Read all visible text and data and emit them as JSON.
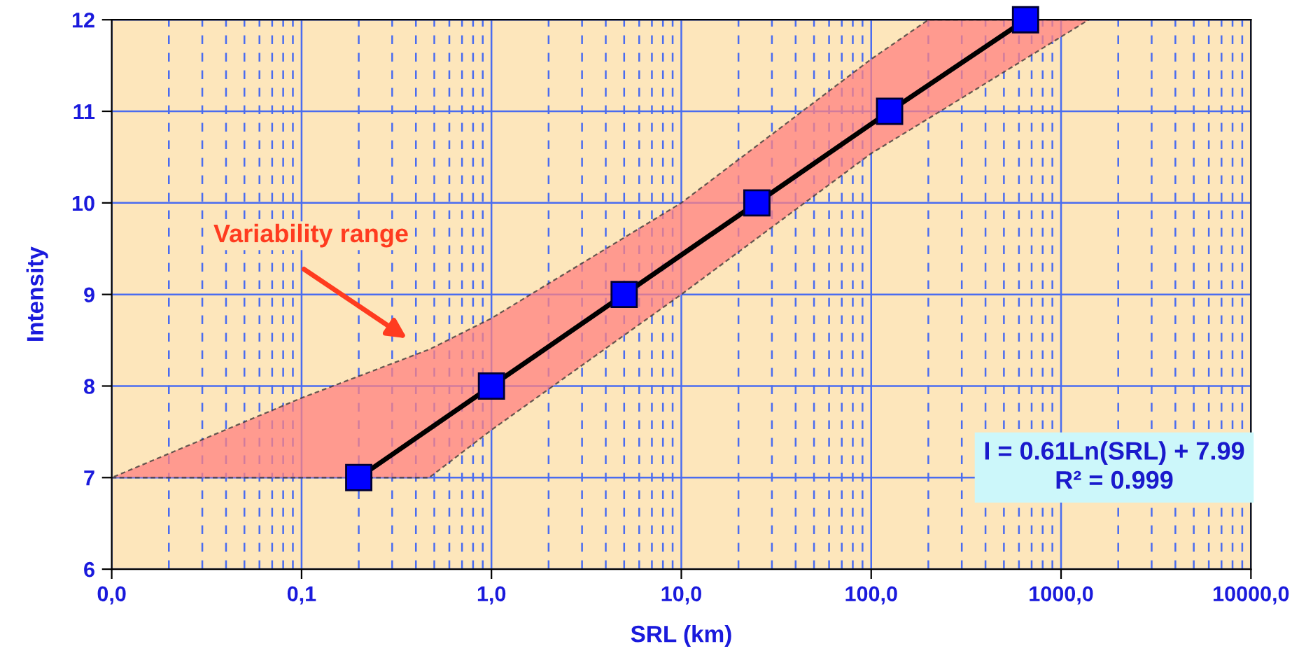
{
  "chart_data": {
    "type": "line",
    "xlabel": "SRL (km)",
    "ylabel": "Intensity",
    "log": "x",
    "grid": true,
    "marker": "square",
    "line_style": "solid",
    "xlim": [
      0.01,
      10000
    ],
    "ylim": [
      6,
      12
    ],
    "xticks": [
      {
        "value": 0.01,
        "label": "0,0"
      },
      {
        "value": 0.1,
        "label": "0,1"
      },
      {
        "value": 1,
        "label": "1,0"
      },
      {
        "value": 10,
        "label": "10,0"
      },
      {
        "value": 100,
        "label": "100,0"
      },
      {
        "value": 1000,
        "label": "1000,0"
      },
      {
        "value": 10000,
        "label": "10000,0"
      },
      {
        "value": 0.02,
        "label": null
      },
      {
        "value": 0.03,
        "label": null
      },
      {
        "value": 0.04,
        "label": null
      },
      {
        "value": 0.05,
        "label": null
      },
      {
        "value": 0.06,
        "label": null
      },
      {
        "value": 0.07,
        "label": null
      },
      {
        "value": 0.08,
        "label": null
      },
      {
        "value": 0.09,
        "label": null
      },
      {
        "value": 0.2,
        "label": null
      },
      {
        "value": 0.3,
        "label": null
      },
      {
        "value": 0.4,
        "label": null
      },
      {
        "value": 0.5,
        "label": null
      },
      {
        "value": 0.6,
        "label": null
      },
      {
        "value": 0.7,
        "label": null
      },
      {
        "value": 0.8,
        "label": null
      },
      {
        "value": 0.9,
        "label": null
      },
      {
        "value": 2,
        "label": null
      },
      {
        "value": 3,
        "label": null
      },
      {
        "value": 4,
        "label": null
      },
      {
        "value": 5,
        "label": null
      },
      {
        "value": 6,
        "label": null
      },
      {
        "value": 7,
        "label": null
      },
      {
        "value": 8,
        "label": null
      },
      {
        "value": 9,
        "label": null
      },
      {
        "value": 20,
        "label": null
      },
      {
        "value": 30,
        "label": null
      },
      {
        "value": 40,
        "label": null
      },
      {
        "value": 50,
        "label": null
      },
      {
        "value": 60,
        "label": null
      },
      {
        "value": 70,
        "label": null
      },
      {
        "value": 80,
        "label": null
      },
      {
        "value": 90,
        "label": null
      },
      {
        "value": 200,
        "label": null
      },
      {
        "value": 300,
        "label": null
      },
      {
        "value": 400,
        "label": null
      },
      {
        "value": 500,
        "label": null
      },
      {
        "value": 600,
        "label": null
      },
      {
        "value": 700,
        "label": null
      },
      {
        "value": 800,
        "label": null
      },
      {
        "value": 900,
        "label": null
      },
      {
        "value": 2000,
        "label": null
      },
      {
        "value": 3000,
        "label": null
      },
      {
        "value": 4000,
        "label": null
      },
      {
        "value": 5000,
        "label": null
      },
      {
        "value": 6000,
        "label": null
      },
      {
        "value": 7000,
        "label": null
      },
      {
        "value": 8000,
        "label": null
      },
      {
        "value": 9000,
        "label": null
      }
    ],
    "yticks": [
      6,
      7,
      8,
      9,
      10,
      11,
      12
    ],
    "series": [
      {
        "type": "area",
        "color": "#ff8080",
        "x": [
          0.01,
          0.1,
          0.47,
          1,
          10,
          100,
          200,
          1400
        ],
        "values": [
          null,
          null,
          null,
          null,
          null,
          null,
          null,
          null
        ],
        "lower": [
          7,
          7,
          7,
          7.52,
          9.0,
          10.54,
          10.92,
          12
        ],
        "upper": [
          7,
          7.87,
          8.4,
          8.74,
          10.0,
          11.57,
          12,
          12
        ]
      },
      {
        "color": "#000000",
        "x": [
          0.2,
          1,
          5,
          25,
          125,
          650
        ],
        "values": [
          7,
          8,
          9,
          10,
          11,
          12
        ]
      }
    ],
    "annotations": [
      "Variability range",
      "I = 0.61Ln(SRL) + 7.99",
      "R² = 0.999"
    ]
  }
}
